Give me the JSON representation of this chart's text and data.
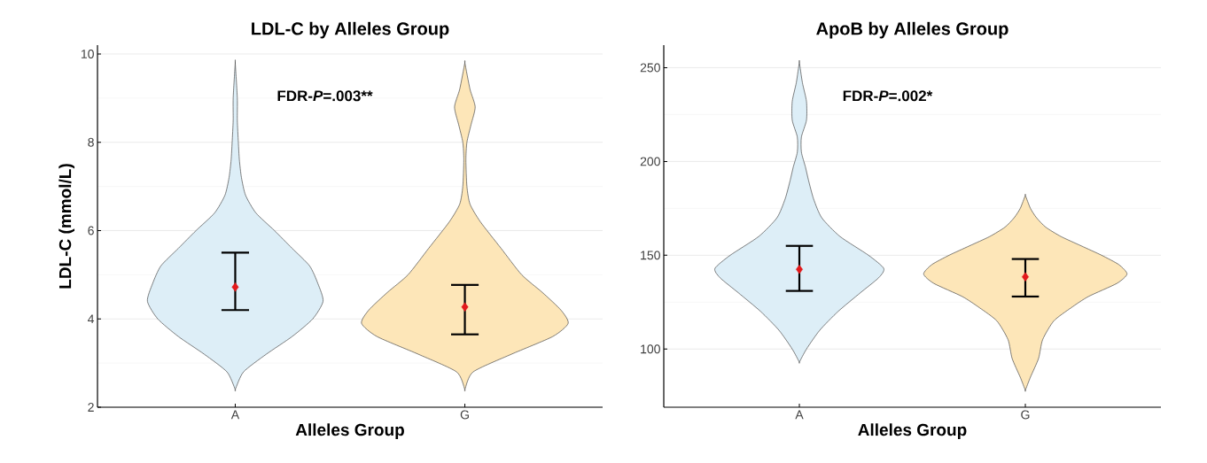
{
  "chart_data": [
    {
      "type": "scatter",
      "title": "LDL-C by Alleles Group",
      "xlabel": "Alleles Group",
      "ylabel": "LDL-C (mmol/L)",
      "categories": [
        "A",
        "G"
      ],
      "ylim": [
        2,
        10.2
      ],
      "yticks": [
        2,
        4,
        6,
        8,
        10
      ],
      "grid": "y",
      "annotations": [
        "FDR-*P*=.003**"
      ],
      "series": [
        {
          "color": "#e31a1c",
          "marker": "diamond",
          "values": [
            4.72,
            4.27
          ],
          "errors": [
            [
              4.2,
              5.5
            ],
            [
              3.65,
              4.77
            ]
          ]
        }
      ]
    },
    {
      "type": "scatter",
      "title": "ApoB by Alleles Group",
      "xlabel": "Alleles Group",
      "categories": [
        "A",
        "G"
      ],
      "ylim": [
        69,
        262
      ],
      "yticks": [
        100,
        150,
        200,
        250
      ],
      "grid": "y",
      "annotations": [
        "FDR-*P*=.002*"
      ],
      "series": [
        {
          "color": "#e31a1c",
          "marker": "diamond",
          "values": [
            142.5,
            138.5
          ],
          "errors": [
            [
              131,
              155
            ],
            [
              128,
              148
            ]
          ]
        }
      ]
    }
  ]
}
